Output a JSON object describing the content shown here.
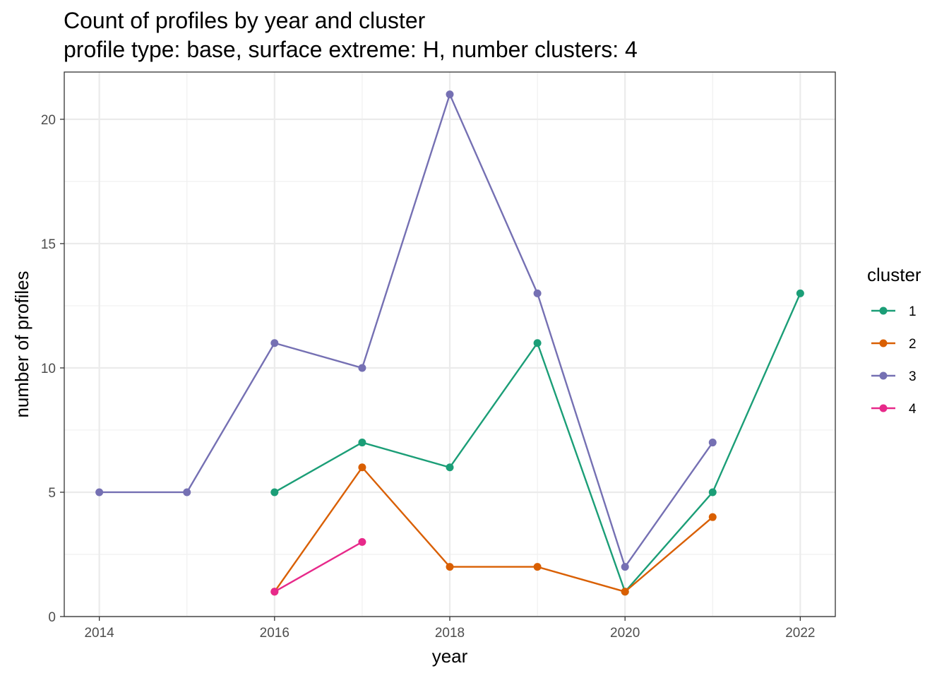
{
  "chart_data": {
    "type": "line",
    "title": "Count of profiles by year and cluster",
    "subtitle": "profile type: base, surface extreme: H, number clusters: 4",
    "xlabel": "year",
    "ylabel": "number of profiles",
    "xlim": [
      2013.6,
      2022.4
    ],
    "ylim": [
      0,
      21.9
    ],
    "xticks": [
      2014,
      2016,
      2018,
      2020,
      2022
    ],
    "yticks": [
      0,
      5,
      10,
      15,
      20
    ],
    "grid": true,
    "legend": {
      "title": "cluster",
      "position": "right"
    },
    "series": [
      {
        "name": "1",
        "color": "#1B9E77",
        "points": [
          [
            2016,
            5
          ],
          [
            2017,
            7
          ],
          [
            2018,
            6
          ],
          [
            2019,
            11
          ],
          [
            2020,
            1
          ],
          [
            2021,
            5
          ],
          [
            2022,
            13
          ]
        ]
      },
      {
        "name": "2",
        "color": "#D95F02",
        "points": [
          [
            2016,
            1
          ],
          [
            2017,
            6
          ],
          [
            2018,
            2
          ],
          [
            2019,
            2
          ],
          [
            2020,
            1
          ],
          [
            2021,
            4
          ]
        ]
      },
      {
        "name": "3",
        "color": "#7570B3",
        "points": [
          [
            2014,
            5
          ],
          [
            2015,
            5
          ],
          [
            2016,
            11
          ],
          [
            2017,
            10
          ],
          [
            2018,
            21
          ],
          [
            2019,
            13
          ],
          [
            2020,
            2
          ],
          [
            2021,
            7
          ]
        ]
      },
      {
        "name": "4",
        "color": "#E7298A",
        "points": [
          [
            2016,
            1
          ],
          [
            2017,
            3
          ]
        ]
      }
    ]
  }
}
